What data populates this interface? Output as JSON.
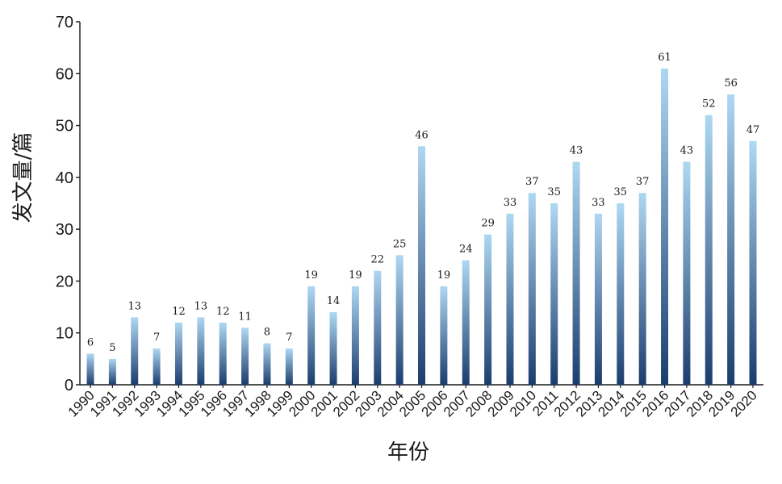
{
  "chart_data": {
    "type": "bar",
    "xlabel": "年份",
    "ylabel": "发文量/篇",
    "ylim": [
      0,
      70
    ],
    "yticks": [
      0,
      10,
      20,
      30,
      40,
      50,
      60,
      70
    ],
    "grid": false,
    "categories": [
      "1990",
      "1991",
      "1992",
      "1993",
      "1994",
      "1995",
      "1996",
      "1997",
      "1998",
      "1999",
      "2000",
      "2001",
      "2002",
      "2003",
      "2004",
      "2005",
      "2006",
      "2007",
      "2008",
      "2009",
      "2010",
      "2011",
      "2012",
      "2013",
      "2014",
      "2015",
      "2016",
      "2017",
      "2018",
      "2019",
      "2020"
    ],
    "values": [
      6,
      5,
      13,
      7,
      12,
      13,
      12,
      11,
      8,
      7,
      19,
      14,
      19,
      22,
      25,
      46,
      19,
      24,
      29,
      33,
      37,
      35,
      43,
      33,
      35,
      37,
      61,
      43,
      52,
      56,
      47
    ],
    "bar_gradient": {
      "top": "#aed8f2",
      "bottom": "#1b3d6e"
    },
    "axis_color": "#1a1a1a"
  }
}
